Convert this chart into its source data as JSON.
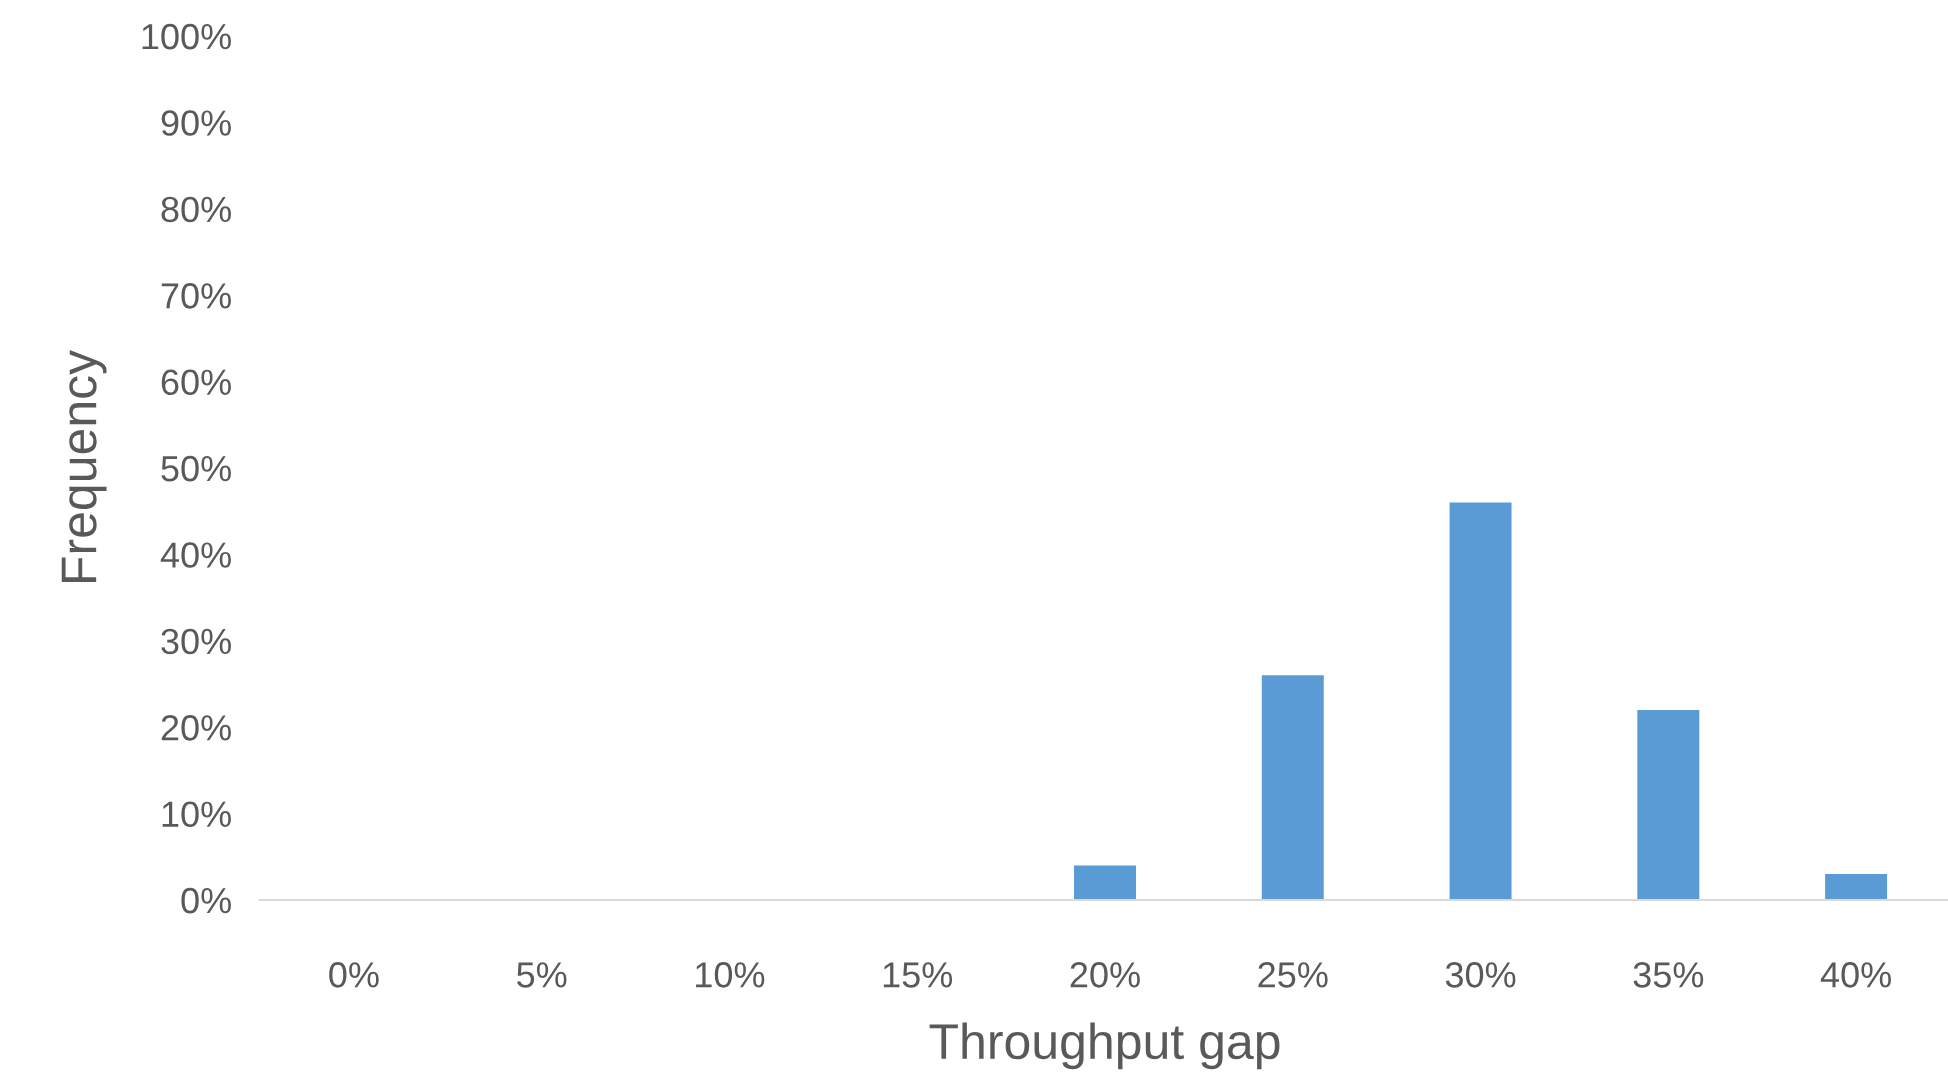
{
  "chart_data": {
    "type": "bar",
    "xlabel": "Throughput gap",
    "ylabel": "Frequency",
    "categories": [
      "0%",
      "5%",
      "10%",
      "15%",
      "20%",
      "25%",
      "30%",
      "35%",
      "40%"
    ],
    "values": [
      0,
      0,
      0,
      0,
      4,
      26,
      46,
      22,
      3
    ],
    "color": "#5b9bd5",
    "ylim": [
      0,
      100
    ],
    "yticks": [
      {
        "value": 0,
        "label": "0%"
      },
      {
        "value": 10,
        "label": "10%"
      },
      {
        "value": 20,
        "label": "20%"
      },
      {
        "value": 30,
        "label": "30%"
      },
      {
        "value": 40,
        "label": "40%"
      },
      {
        "value": 50,
        "label": "50%"
      },
      {
        "value": 60,
        "label": "60%"
      },
      {
        "value": 70,
        "label": "70%"
      },
      {
        "value": 80,
        "label": "80%"
      },
      {
        "value": 90,
        "label": "90%"
      },
      {
        "value": 100,
        "label": "100%"
      }
    ],
    "grid": false,
    "legend": false
  }
}
